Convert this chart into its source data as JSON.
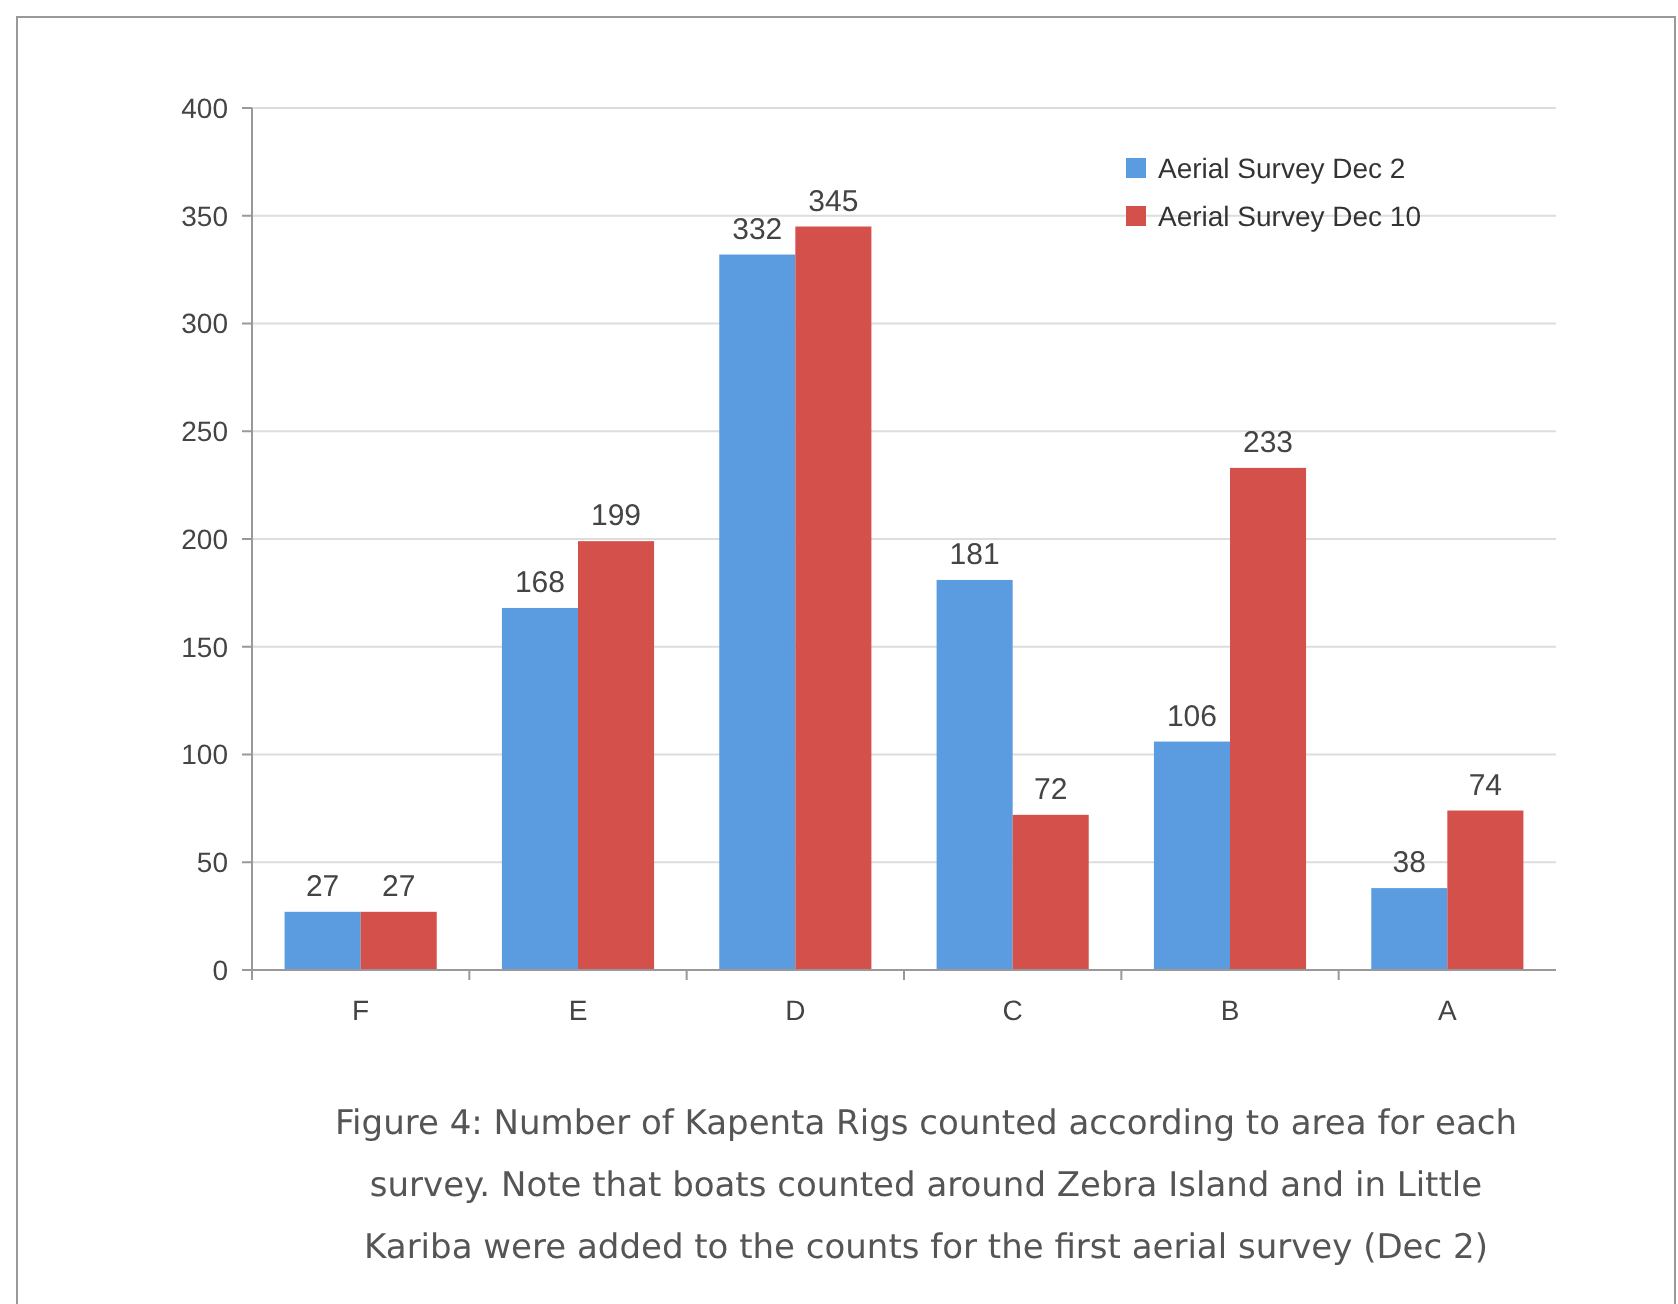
{
  "chart_data": {
    "type": "bar",
    "categories": [
      "F",
      "E",
      "D",
      "C",
      "B",
      "A"
    ],
    "series": [
      {
        "name": "Aerial Survey Dec 2",
        "color": "#5b9be0",
        "values": [
          27,
          168,
          332,
          181,
          106,
          38
        ]
      },
      {
        "name": "Aerial Survey Dec 10",
        "color": "#d4504a",
        "values": [
          27,
          199,
          345,
          72,
          233,
          74
        ]
      }
    ],
    "ylim": [
      0,
      400
    ],
    "yticks": [
      0,
      50,
      100,
      150,
      200,
      250,
      300,
      350,
      400
    ],
    "grid": "y",
    "legend": "top right",
    "data_labels": true,
    "annotations": [
      "Figure 4: Number of Kapenta Rigs counted according to area for each survey. Note that boats counted around Zebra Island and in Little Kariba were added to the counts for the first aerial survey (Dec 2)"
    ]
  }
}
